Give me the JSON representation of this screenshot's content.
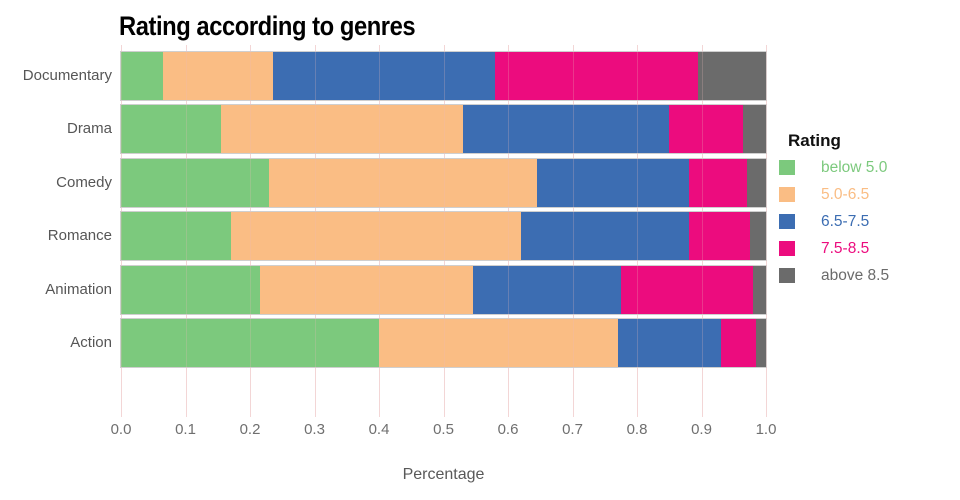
{
  "chart_data": {
    "type": "bar",
    "orientation": "horizontal",
    "stacked": true,
    "title": "Rating according to genres",
    "xlabel": "Percentage",
    "ylabel": "",
    "xlim": [
      0,
      1
    ],
    "xtick_labels": [
      "0.0",
      "0.1",
      "0.2",
      "0.3",
      "0.4",
      "0.5",
      "0.6",
      "0.7",
      "0.8",
      "0.9",
      "1.0"
    ],
    "grid": true,
    "legend_position": "right",
    "legend_title": "Rating",
    "categories": [
      "Documentary",
      "Drama",
      "Comedy",
      "Romance",
      "Animation",
      "Action"
    ],
    "series": [
      {
        "name": "below 5.0",
        "color": "#7cc97d",
        "values": [
          0.065,
          0.155,
          0.23,
          0.17,
          0.215,
          0.4
        ]
      },
      {
        "name": "5.0-6.5",
        "color": "#fabd84",
        "values": [
          0.17,
          0.375,
          0.415,
          0.45,
          0.33,
          0.37
        ]
      },
      {
        "name": "6.5-7.5",
        "color": "#3c6db2",
        "values": [
          0.345,
          0.32,
          0.235,
          0.26,
          0.23,
          0.16
        ]
      },
      {
        "name": "7.5-8.5",
        "color": "#ec0c7e",
        "values": [
          0.315,
          0.115,
          0.09,
          0.095,
          0.205,
          0.055
        ]
      },
      {
        "name": "above 8.5",
        "color": "#6b6b6b",
        "values": [
          0.105,
          0.035,
          0.03,
          0.025,
          0.02,
          0.015
        ]
      }
    ]
  },
  "colors": {
    "background": "#ffffff",
    "gridline": "rgba(235,185,185,0.45)",
    "bar_outline": "#cfcfcf",
    "category_label": "#565656",
    "tick_label": "#6f6f6f",
    "axis_title": "#595959",
    "chart_title": "#000000",
    "legend_title": "#111111"
  }
}
